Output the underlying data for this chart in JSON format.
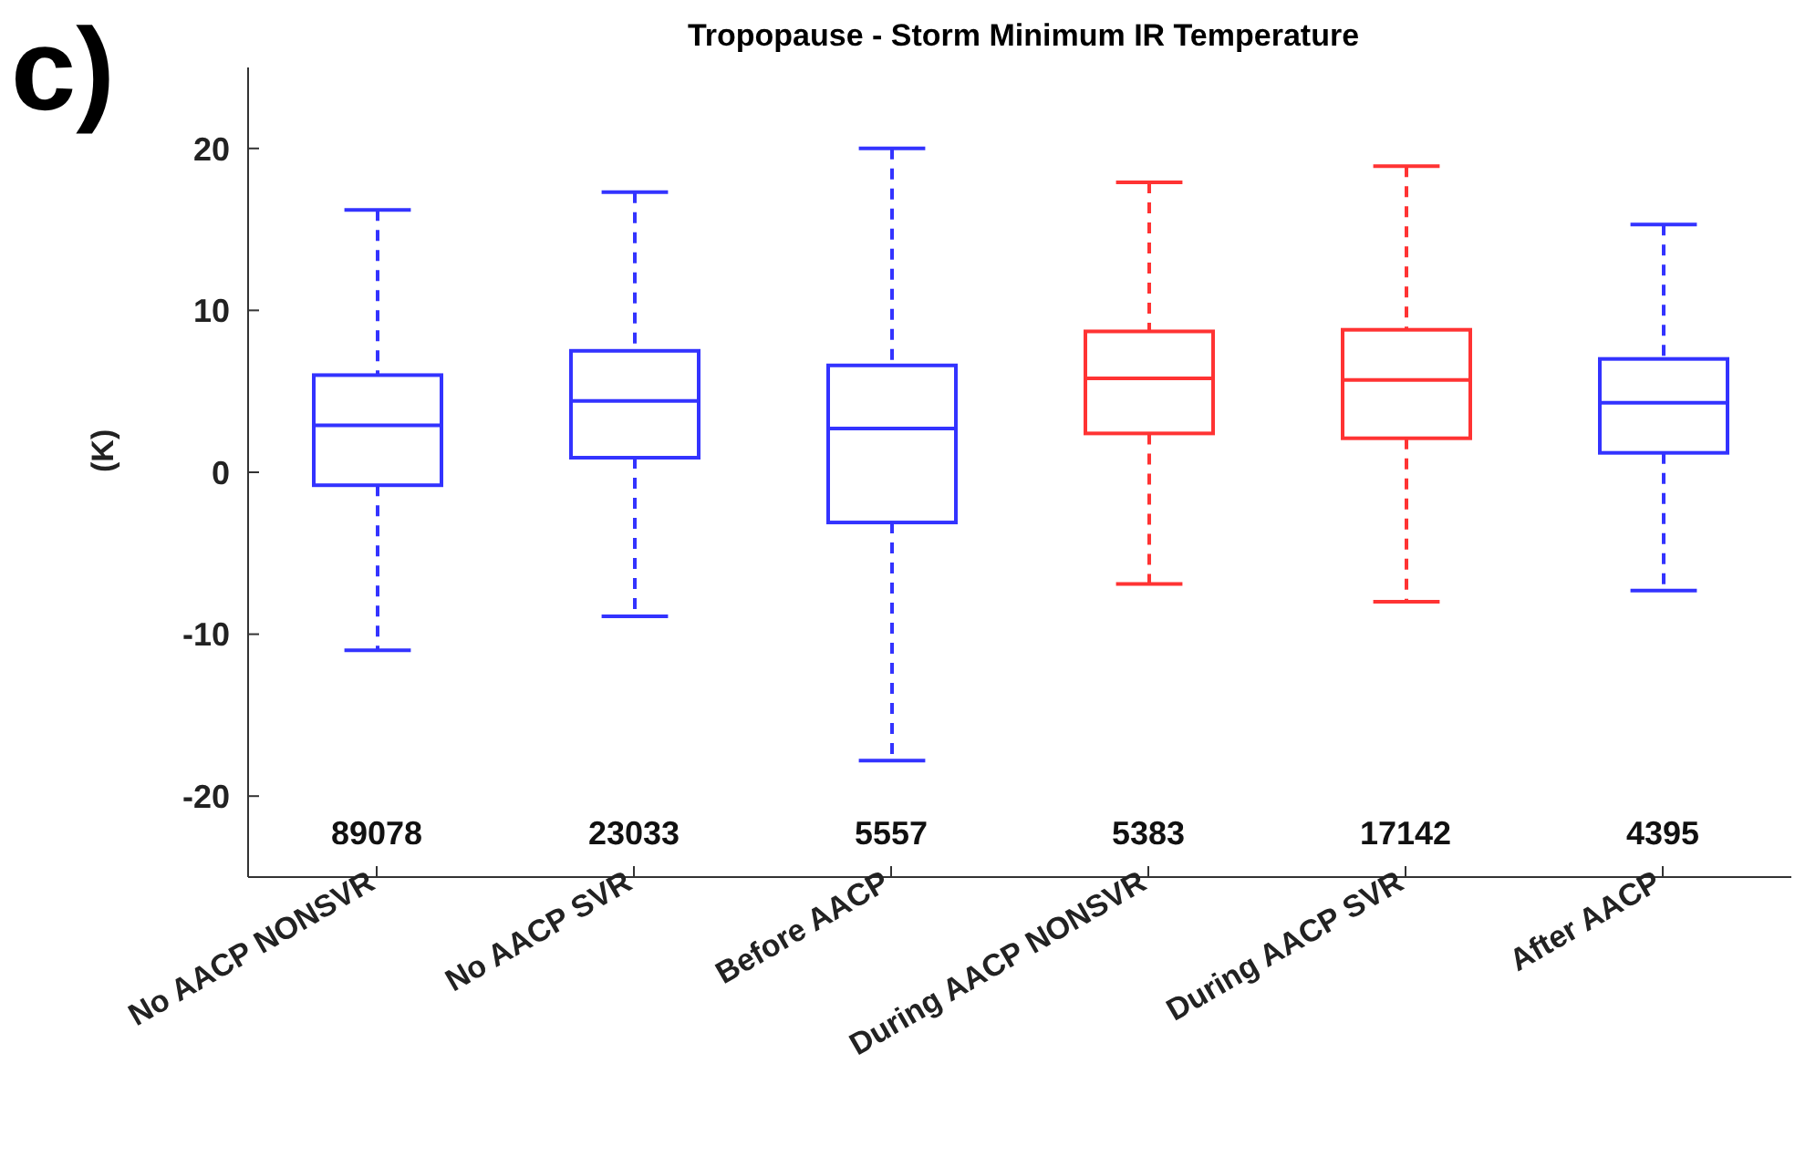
{
  "chart_data": {
    "type": "box",
    "title": "Tropopause - Storm Minimum IR Temperature",
    "ylabel": "(K)",
    "categories": [
      "No AACP NONSVR",
      "No AACP SVR",
      "Before AACP",
      "During AACP NONSVR",
      "During AACP SVR",
      "After AACP"
    ],
    "boxes": [
      {
        "low": -11.0,
        "q1": -0.8,
        "median": 2.9,
        "q3": 6.0,
        "high": 16.2
      },
      {
        "low": -8.9,
        "q1": 0.9,
        "median": 4.4,
        "q3": 7.5,
        "high": 17.3
      },
      {
        "low": -17.8,
        "q1": -3.1,
        "median": 2.7,
        "q3": 6.6,
        "high": 20.0
      },
      {
        "low": -6.9,
        "q1": 2.4,
        "median": 5.8,
        "q3": 8.7,
        "high": 17.9
      },
      {
        "low": -8.0,
        "q1": 2.1,
        "median": 5.7,
        "q3": 8.8,
        "high": 18.9
      },
      {
        "low": -7.3,
        "q1": 1.2,
        "median": 4.3,
        "q3": 7.0,
        "high": 15.3
      }
    ],
    "colors": [
      "#3333ff",
      "#3333ff",
      "#3333ff",
      "#ff3333",
      "#ff3333",
      "#3333ff"
    ],
    "line_style": "dashed",
    "ylim": [
      -25,
      25
    ],
    "yticks": [
      -20,
      -10,
      0,
      10,
      20
    ],
    "grid": false,
    "legend": false,
    "annotations": [
      "c)",
      "89078",
      "23033",
      "5557",
      "5383",
      "17142",
      "4395"
    ]
  }
}
